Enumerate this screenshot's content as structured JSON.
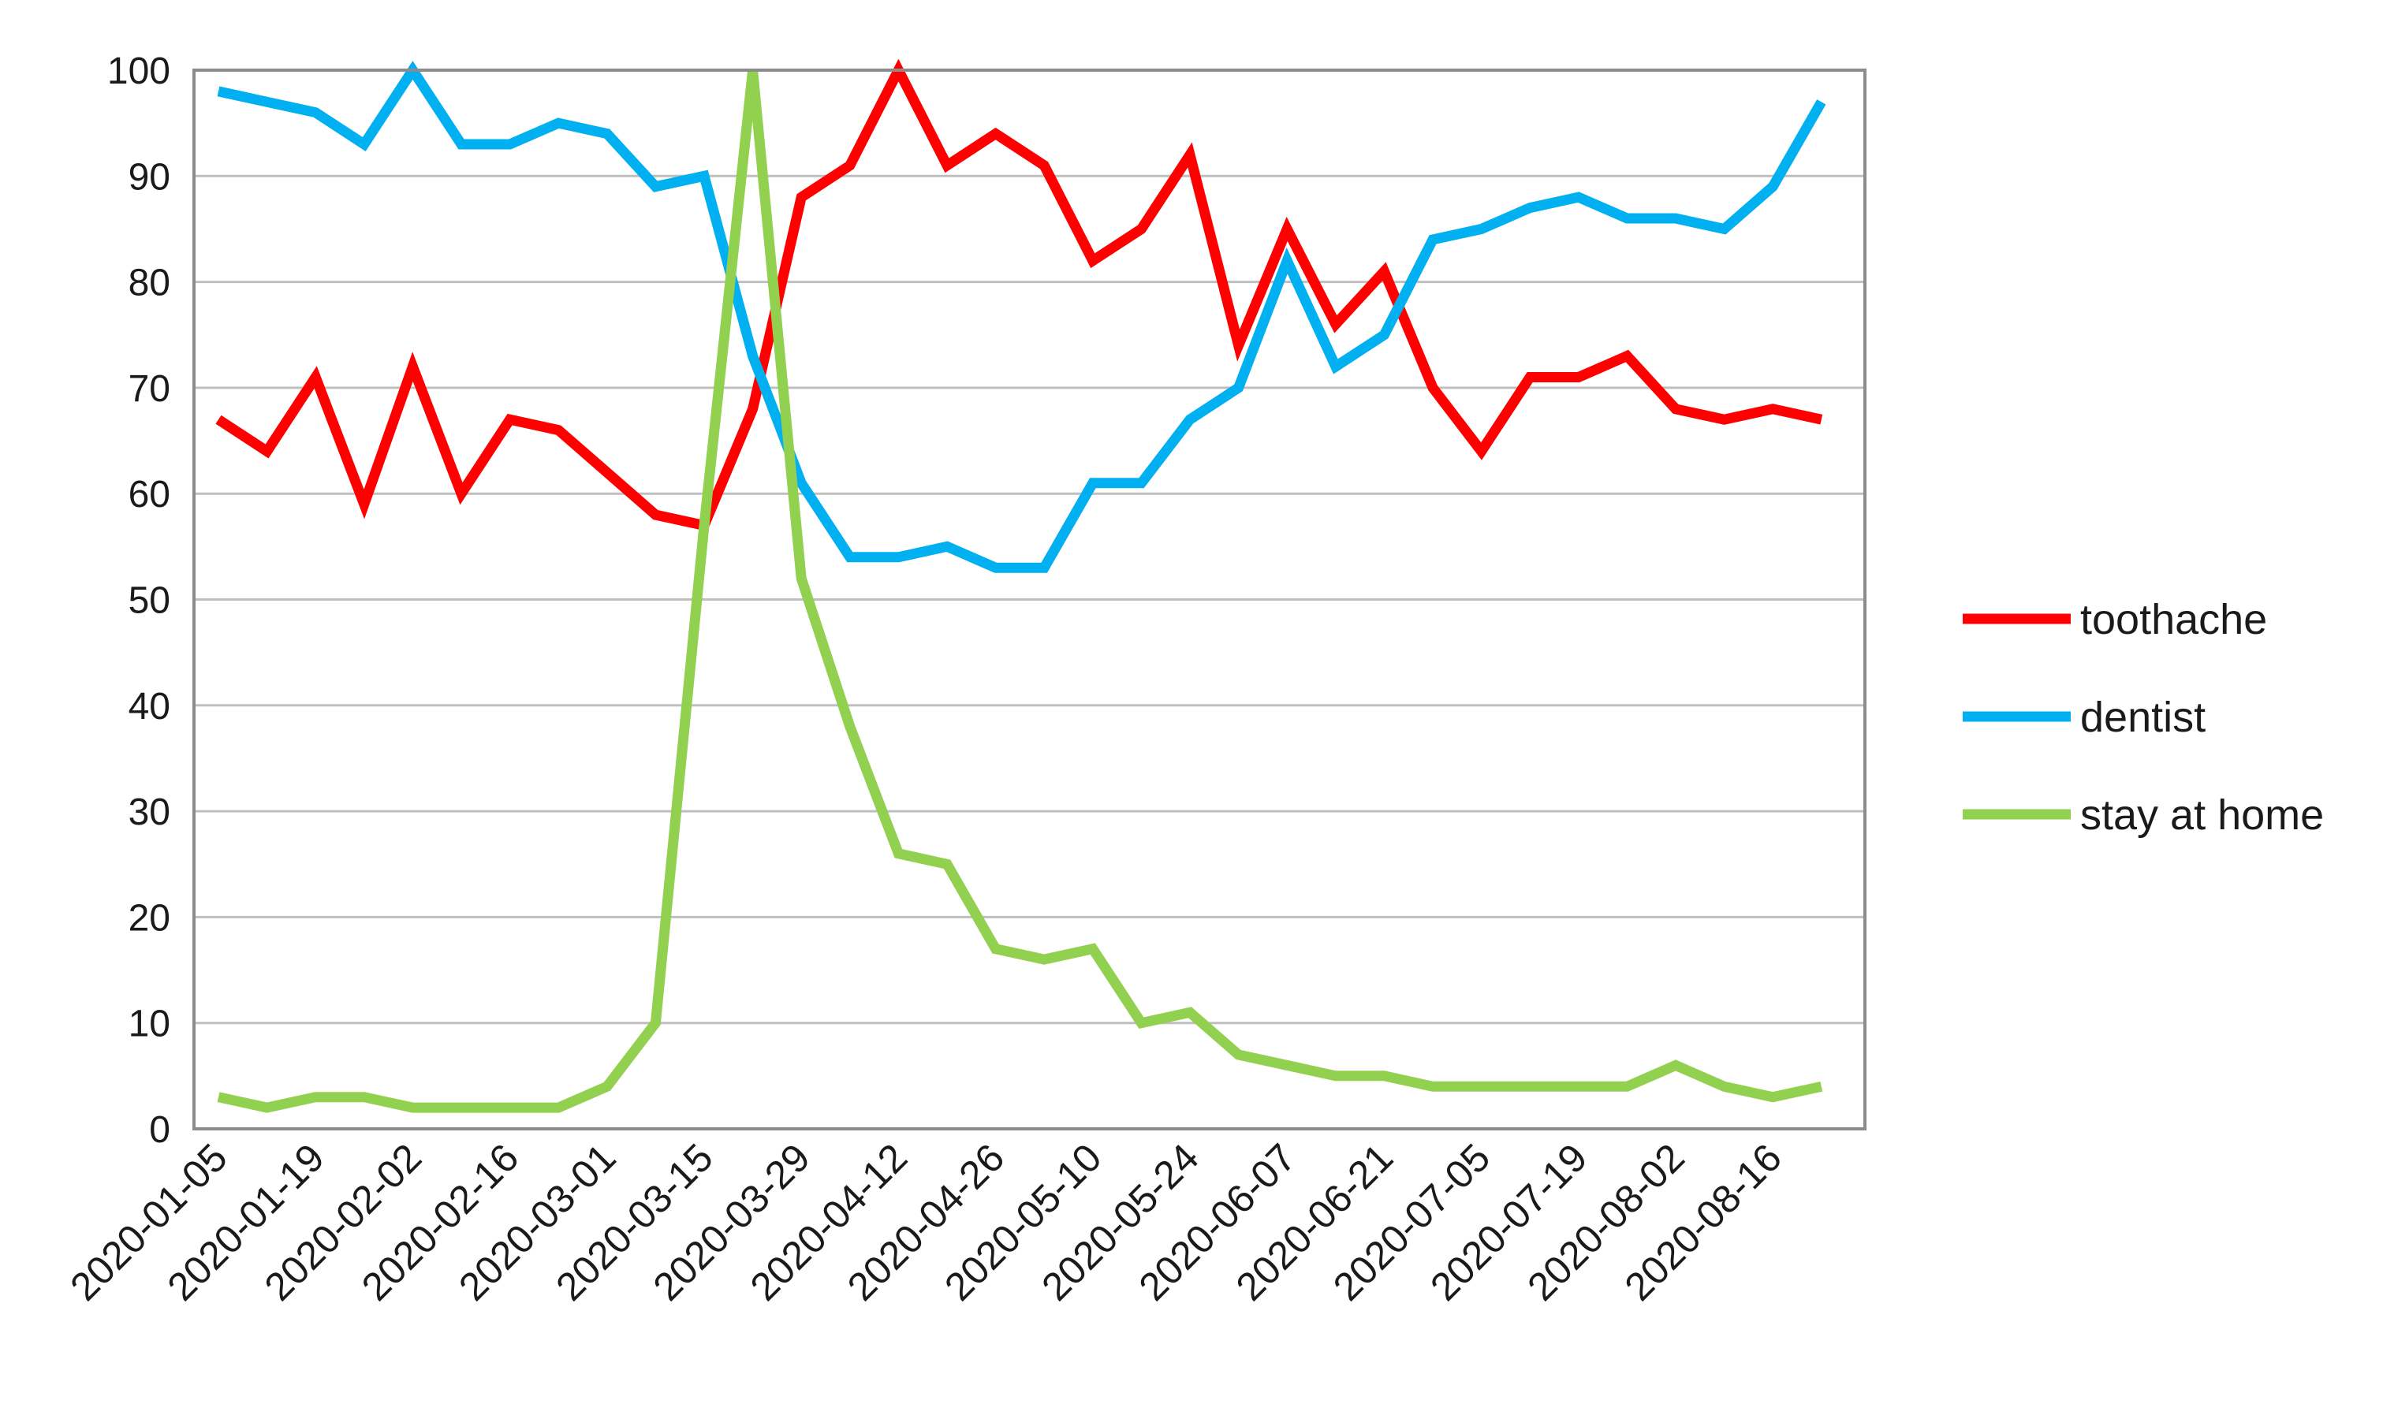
{
  "chart_data": {
    "type": "line",
    "title": "",
    "xlabel": "",
    "ylabel": "",
    "ylim": [
      0,
      100
    ],
    "yticks": [
      0,
      10,
      20,
      30,
      40,
      50,
      60,
      70,
      80,
      90,
      100
    ],
    "grid": true,
    "legend_position": "right",
    "x": [
      "2020-01-05",
      "2020-01-12",
      "2020-01-19",
      "2020-01-26",
      "2020-02-02",
      "2020-02-09",
      "2020-02-16",
      "2020-02-23",
      "2020-03-01",
      "2020-03-08",
      "2020-03-15",
      "2020-03-22",
      "2020-03-29",
      "2020-04-05",
      "2020-04-12",
      "2020-04-19",
      "2020-04-26",
      "2020-05-03",
      "2020-05-10",
      "2020-05-17",
      "2020-05-24",
      "2020-05-31",
      "2020-06-07",
      "2020-06-14",
      "2020-06-21",
      "2020-06-28",
      "2020-07-05",
      "2020-07-12",
      "2020-07-19",
      "2020-07-26",
      "2020-08-02",
      "2020-08-09",
      "2020-08-16",
      "2020-08-23"
    ],
    "xtick_labels": [
      "2020-01-05",
      "2020-01-19",
      "2020-02-02",
      "2020-02-16",
      "2020-03-01",
      "2020-03-15",
      "2020-03-29",
      "2020-04-12",
      "2020-04-26",
      "2020-05-10",
      "2020-05-24",
      "2020-06-07",
      "2020-06-21",
      "2020-07-05",
      "2020-07-19",
      "2020-08-02",
      "2020-08-16"
    ],
    "series": [
      {
        "name": "toothache",
        "color": "#ff0000",
        "values": [
          67,
          64,
          71,
          59,
          72,
          60,
          67,
          66,
          62,
          58,
          57,
          68,
          88,
          91,
          100,
          91,
          94,
          91,
          82,
          85,
          92,
          74,
          85,
          76,
          81,
          70,
          64,
          71,
          71,
          73,
          68,
          67,
          68,
          67
        ]
      },
      {
        "name": "dentist",
        "color": "#00b0f0",
        "values": [
          98,
          97,
          96,
          93,
          100,
          93,
          93,
          95,
          94,
          89,
          90,
          73,
          61,
          54,
          54,
          55,
          53,
          53,
          61,
          61,
          67,
          70,
          82,
          72,
          75,
          84,
          85,
          87,
          88,
          86,
          86,
          85,
          89,
          97
        ]
      },
      {
        "name": "stay at home",
        "color": "#92d050",
        "values": [
          3,
          2,
          3,
          3,
          2,
          2,
          2,
          2,
          4,
          10,
          57,
          100,
          52,
          38,
          26,
          25,
          17,
          16,
          17,
          10,
          11,
          7,
          6,
          5,
          5,
          4,
          4,
          4,
          4,
          4,
          6,
          4,
          3,
          4
        ]
      }
    ]
  }
}
